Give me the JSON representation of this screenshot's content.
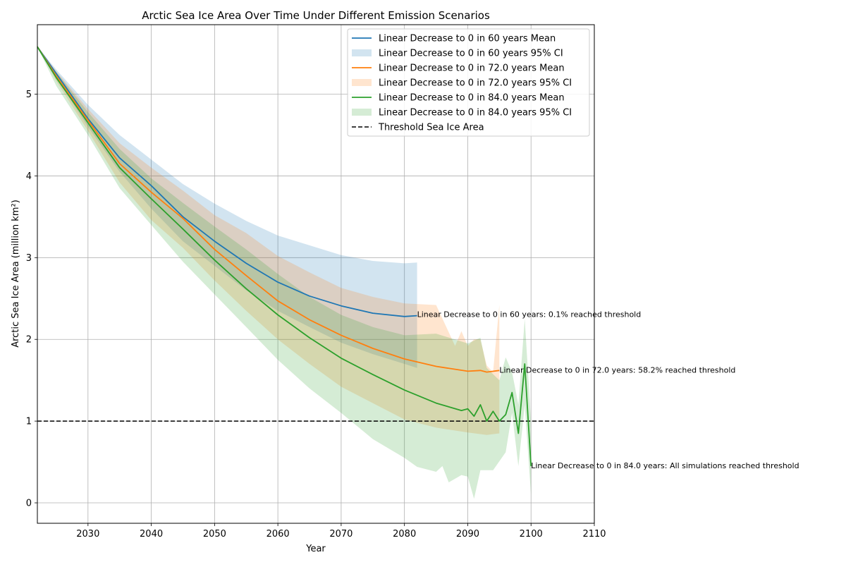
{
  "chart_data": {
    "type": "line",
    "title": "Arctic Sea Ice Area Over Time Under Different Emission Scenarios",
    "xlabel": "Year",
    "ylabel": "Arctic Sea Ice Area (million km²)",
    "xlim": [
      2022,
      2110
    ],
    "ylim": [
      -0.25,
      5.85
    ],
    "x_ticks": [
      2030,
      2040,
      2050,
      2060,
      2070,
      2080,
      2090,
      2100,
      2110
    ],
    "y_ticks": [
      0,
      1,
      2,
      3,
      4,
      5
    ],
    "grid": true,
    "legend_placement": "top-right",
    "threshold": {
      "value": 1.0,
      "label": "Threshold Sea Ice Area",
      "color": "#000000",
      "style": "dashed"
    },
    "series": [
      {
        "name": "Linear Decrease to 0 in 60 years Mean",
        "ci_name": "Linear Decrease to 0 in 60 years 95% CI",
        "color": "#1f77b4",
        "points": [
          [
            2022,
            5.58
          ],
          [
            2025,
            5.25
          ],
          [
            2030,
            4.7
          ],
          [
            2035,
            4.22
          ],
          [
            2040,
            3.88
          ],
          [
            2045,
            3.5
          ],
          [
            2050,
            3.2
          ],
          [
            2055,
            2.93
          ],
          [
            2060,
            2.7
          ],
          [
            2065,
            2.53
          ],
          [
            2070,
            2.41
          ],
          [
            2075,
            2.32
          ],
          [
            2080,
            2.28
          ],
          [
            2082,
            2.29
          ]
        ],
        "ci_upper": [
          [
            2022,
            5.58
          ],
          [
            2025,
            5.3
          ],
          [
            2030,
            4.87
          ],
          [
            2035,
            4.5
          ],
          [
            2040,
            4.2
          ],
          [
            2045,
            3.9
          ],
          [
            2050,
            3.66
          ],
          [
            2055,
            3.45
          ],
          [
            2060,
            3.27
          ],
          [
            2065,
            3.15
          ],
          [
            2070,
            3.03
          ],
          [
            2075,
            2.96
          ],
          [
            2080,
            2.93
          ],
          [
            2082,
            2.94
          ]
        ],
        "ci_lower": [
          [
            2022,
            5.58
          ],
          [
            2025,
            5.2
          ],
          [
            2030,
            4.6
          ],
          [
            2035,
            4.05
          ],
          [
            2040,
            3.6
          ],
          [
            2045,
            3.2
          ],
          [
            2050,
            2.9
          ],
          [
            2055,
            2.6
          ],
          [
            2060,
            2.35
          ],
          [
            2065,
            2.15
          ],
          [
            2070,
            1.96
          ],
          [
            2075,
            1.82
          ],
          [
            2080,
            1.7
          ],
          [
            2082,
            1.65
          ]
        ],
        "annotation": "Linear Decrease to 0 in 60 years: 0.1% reached threshold",
        "annotation_xy": [
          2082,
          2.3
        ]
      },
      {
        "name": "Linear Decrease to 0 in 72.0 years Mean",
        "ci_name": "Linear Decrease to 0 in 72.0 years 95% CI",
        "color": "#ff7f0e",
        "points": [
          [
            2022,
            5.58
          ],
          [
            2025,
            5.22
          ],
          [
            2030,
            4.68
          ],
          [
            2035,
            4.15
          ],
          [
            2040,
            3.8
          ],
          [
            2045,
            3.48
          ],
          [
            2050,
            3.1
          ],
          [
            2055,
            2.78
          ],
          [
            2060,
            2.47
          ],
          [
            2065,
            2.24
          ],
          [
            2070,
            2.05
          ],
          [
            2075,
            1.89
          ],
          [
            2080,
            1.76
          ],
          [
            2085,
            1.67
          ],
          [
            2090,
            1.61
          ],
          [
            2092,
            1.62
          ],
          [
            2093,
            1.6
          ],
          [
            2095,
            1.62
          ]
        ],
        "ci_upper": [
          [
            2022,
            5.58
          ],
          [
            2025,
            5.28
          ],
          [
            2030,
            4.82
          ],
          [
            2035,
            4.4
          ],
          [
            2040,
            4.1
          ],
          [
            2045,
            3.82
          ],
          [
            2050,
            3.52
          ],
          [
            2055,
            3.3
          ],
          [
            2060,
            3.02
          ],
          [
            2065,
            2.82
          ],
          [
            2070,
            2.63
          ],
          [
            2075,
            2.52
          ],
          [
            2080,
            2.44
          ],
          [
            2085,
            2.42
          ],
          [
            2088,
            1.92
          ],
          [
            2089,
            2.1
          ],
          [
            2090,
            1.92
          ],
          [
            2091,
            2.0
          ],
          [
            2092,
            2.0
          ],
          [
            2093,
            1.68
          ],
          [
            2094,
            1.6
          ],
          [
            2095,
            2.42
          ]
        ],
        "ci_lower": [
          [
            2022,
            5.58
          ],
          [
            2025,
            5.16
          ],
          [
            2030,
            4.55
          ],
          [
            2035,
            3.92
          ],
          [
            2040,
            3.46
          ],
          [
            2045,
            3.12
          ],
          [
            2050,
            2.72
          ],
          [
            2055,
            2.35
          ],
          [
            2060,
            2.0
          ],
          [
            2065,
            1.7
          ],
          [
            2070,
            1.42
          ],
          [
            2075,
            1.22
          ],
          [
            2080,
            1.02
          ],
          [
            2085,
            0.92
          ],
          [
            2090,
            0.86
          ],
          [
            2093,
            0.83
          ],
          [
            2095,
            0.85
          ]
        ],
        "annotation": "Linear Decrease to 0 in 72.0 years: 58.2% reached threshold",
        "annotation_xy": [
          2095,
          1.62
        ]
      },
      {
        "name": "Linear Decrease to 0 in 84.0 years Mean",
        "ci_name": "Linear Decrease to 0 in 84.0 years 95% CI",
        "color": "#2ca02c",
        "points": [
          [
            2022,
            5.58
          ],
          [
            2025,
            5.2
          ],
          [
            2030,
            4.65
          ],
          [
            2035,
            4.1
          ],
          [
            2040,
            3.72
          ],
          [
            2045,
            3.35
          ],
          [
            2050,
            2.97
          ],
          [
            2055,
            2.62
          ],
          [
            2060,
            2.3
          ],
          [
            2065,
            2.02
          ],
          [
            2070,
            1.77
          ],
          [
            2075,
            1.57
          ],
          [
            2080,
            1.38
          ],
          [
            2085,
            1.22
          ],
          [
            2089,
            1.13
          ],
          [
            2090,
            1.15
          ],
          [
            2091,
            1.06
          ],
          [
            2092,
            1.2
          ],
          [
            2093,
            1.0
          ],
          [
            2094,
            1.12
          ],
          [
            2095,
            1.0
          ],
          [
            2096,
            1.08
          ],
          [
            2097,
            1.35
          ],
          [
            2098,
            0.85
          ],
          [
            2099,
            1.7
          ],
          [
            2100,
            0.45
          ]
        ],
        "ci_upper": [
          [
            2022,
            5.58
          ],
          [
            2025,
            5.27
          ],
          [
            2030,
            4.78
          ],
          [
            2035,
            4.33
          ],
          [
            2040,
            3.97
          ],
          [
            2045,
            3.67
          ],
          [
            2050,
            3.38
          ],
          [
            2055,
            3.1
          ],
          [
            2060,
            2.8
          ],
          [
            2065,
            2.52
          ],
          [
            2070,
            2.3
          ],
          [
            2075,
            2.15
          ],
          [
            2080,
            2.05
          ],
          [
            2085,
            2.07
          ],
          [
            2090,
            1.95
          ],
          [
            2092,
            2.02
          ],
          [
            2093,
            1.65
          ],
          [
            2095,
            1.5
          ],
          [
            2096,
            1.78
          ],
          [
            2097,
            1.6
          ],
          [
            2098,
            1.2
          ],
          [
            2099,
            2.25
          ],
          [
            2100,
            1.0
          ]
        ],
        "ci_lower": [
          [
            2022,
            5.58
          ],
          [
            2025,
            5.1
          ],
          [
            2030,
            4.5
          ],
          [
            2035,
            3.85
          ],
          [
            2040,
            3.4
          ],
          [
            2045,
            2.95
          ],
          [
            2050,
            2.55
          ],
          [
            2055,
            2.15
          ],
          [
            2060,
            1.75
          ],
          [
            2065,
            1.4
          ],
          [
            2070,
            1.1
          ],
          [
            2075,
            0.78
          ],
          [
            2080,
            0.55
          ],
          [
            2082,
            0.44
          ],
          [
            2085,
            0.38
          ],
          [
            2086,
            0.45
          ],
          [
            2087,
            0.25
          ],
          [
            2089,
            0.34
          ],
          [
            2090,
            0.32
          ],
          [
            2091,
            0.05
          ],
          [
            2092,
            0.4
          ],
          [
            2094,
            0.4
          ],
          [
            2096,
            0.62
          ],
          [
            2097,
            1.1
          ],
          [
            2098,
            0.45
          ],
          [
            2099,
            1.2
          ],
          [
            2100,
            0.1
          ]
        ],
        "annotation": "Linear Decrease to 0 in 84.0 years: All simulations reached threshold",
        "annotation_xy": [
          2100,
          0.45
        ]
      }
    ]
  }
}
